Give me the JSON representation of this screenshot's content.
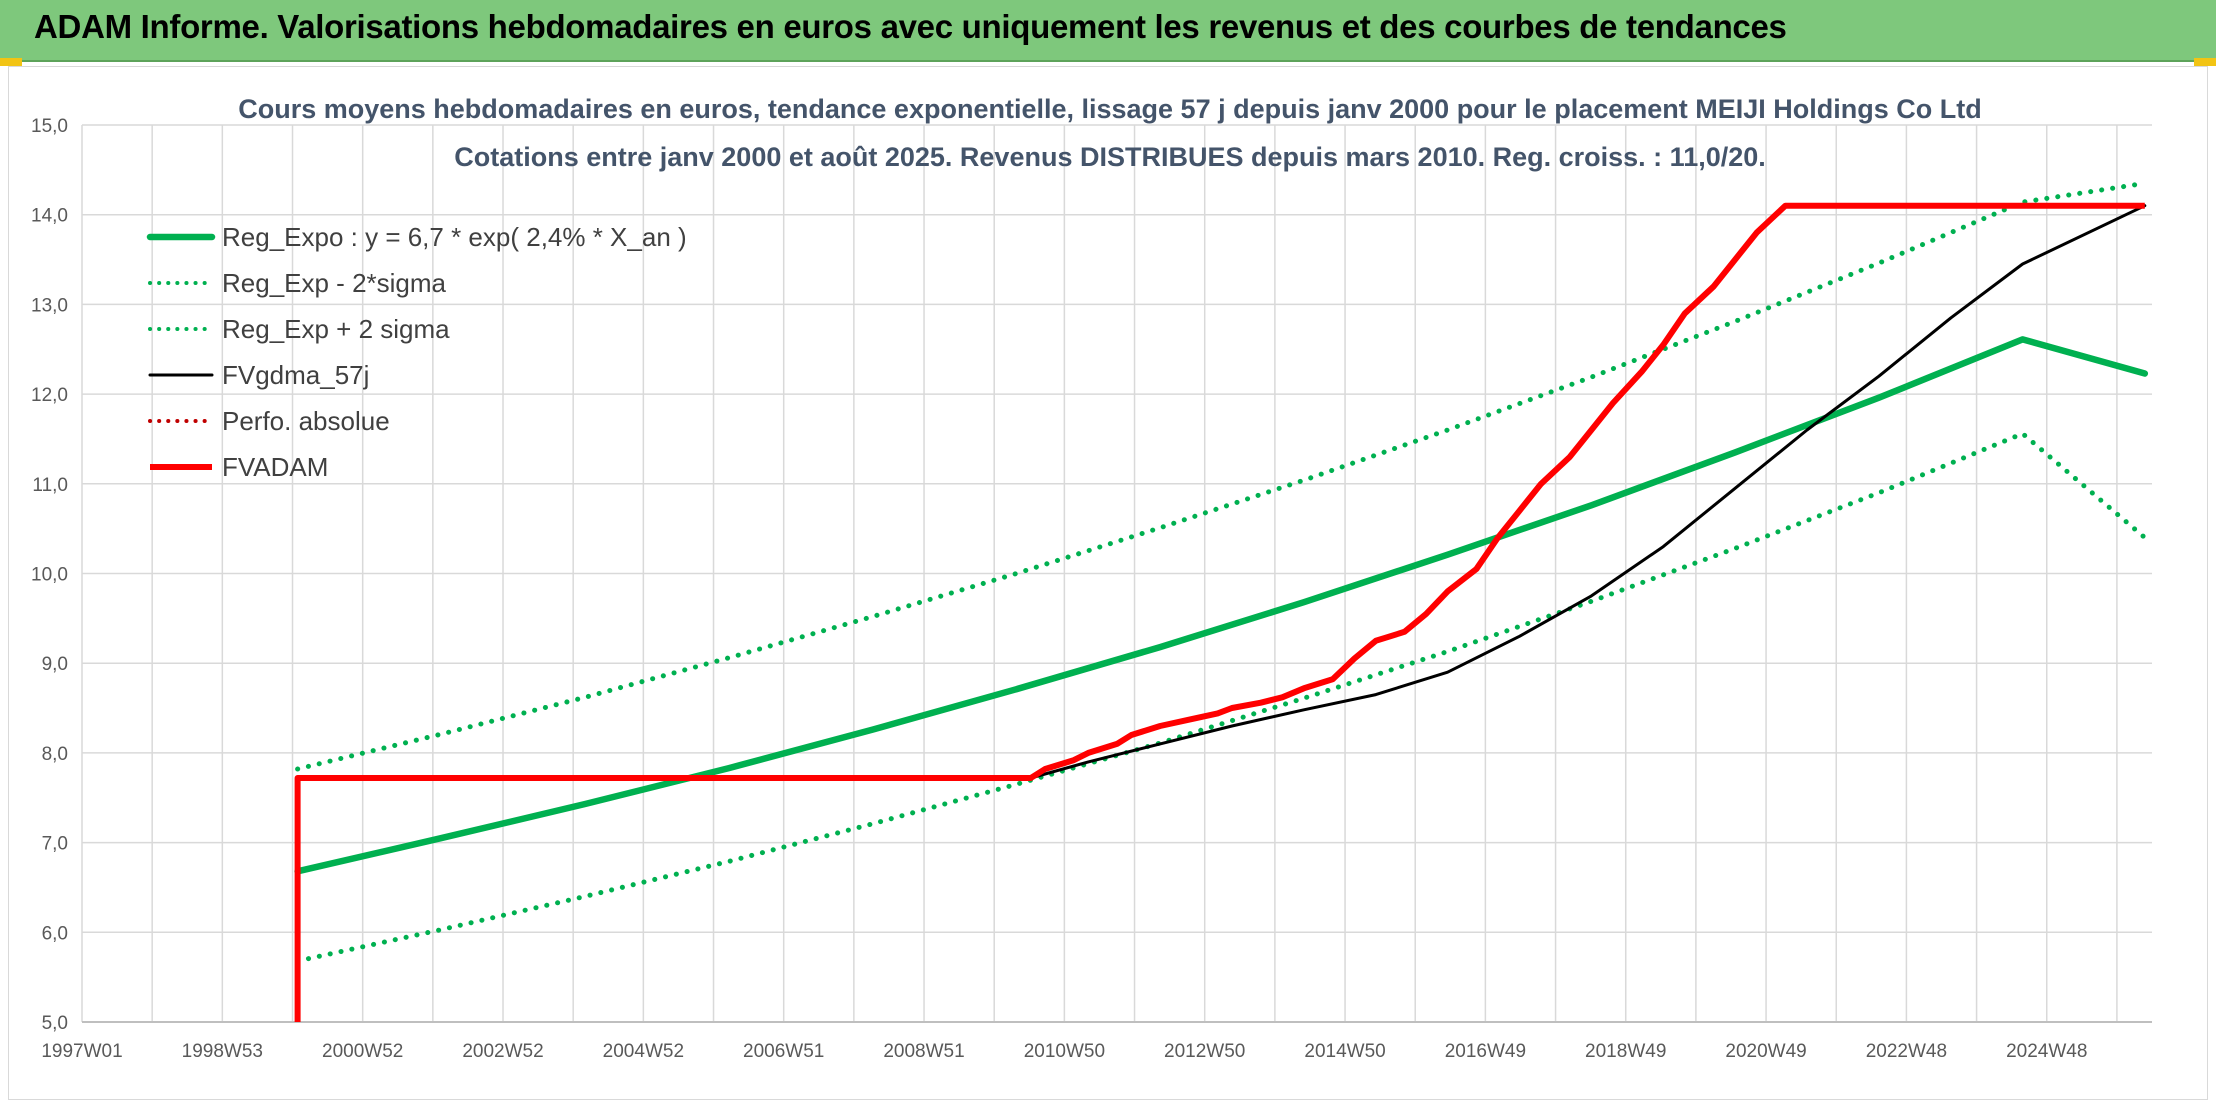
{
  "header": {
    "title": "ADAM Informe. Valorisations hebdomadaires en euros avec uniquement les revenus et des courbes de tendances"
  },
  "colors": {
    "banner": "#7ec87c",
    "reg_expo": "#00b050",
    "fvgdma": "#000000",
    "fvadam": "#ff0000",
    "grid": "#d9d9d9"
  },
  "chart_data": {
    "type": "line",
    "title": "Cours moyens hebdomadaires en euros, tendance exponentielle, lissage 57 j depuis janv 2000 pour le placement MEIJI Holdings Co Ltd",
    "subtitle": "Cotations entre janv 2000 et août 2025. Revenus DISTRIBUES depuis mars 2010. Reg. croiss. : 11,0/20.",
    "xlabel": "",
    "ylabel": "",
    "x_ticks": [
      "1997W01",
      "1998W53",
      "2000W52",
      "2002W52",
      "2004W52",
      "2006W51",
      "2008W51",
      "2010W50",
      "2012W50",
      "2014W50",
      "2016W49",
      "2018W49",
      "2020W49",
      "2022W48",
      "2024W48"
    ],
    "y_ticks": [
      "5,0",
      "6,0",
      "7,0",
      "8,0",
      "9,0",
      "10,0",
      "11,0",
      "12,0",
      "13,0",
      "14,0",
      "15,0"
    ],
    "xlim": [
      1997.0,
      2025.8
    ],
    "ylim": [
      5,
      15
    ],
    "grid": true,
    "legend_position": "top-left",
    "series": [
      {
        "name": "Reg_Expo : y = 6,7 * exp( 2,4% *  X_an )",
        "style": "solid",
        "color": "#00b050",
        "x": [
          2000.0,
          2002.0,
          2004.0,
          2006.0,
          2008.0,
          2010.0,
          2012.0,
          2014.0,
          2016.0,
          2018.0,
          2020.0,
          2022.0,
          2024.0,
          2025.7
        ],
        "y": [
          6.68,
          7.05,
          7.43,
          7.83,
          8.26,
          8.71,
          9.18,
          9.68,
          10.21,
          10.76,
          11.35,
          11.96,
          12.61,
          12.23
        ]
      },
      {
        "name": "Reg_Exp - 2*sigma",
        "style": "dotted",
        "color": "#00b050",
        "x": [
          2000.0,
          2002.0,
          2004.0,
          2006.0,
          2008.0,
          2010.0,
          2012.0,
          2014.0,
          2016.0,
          2018.0,
          2020.0,
          2022.0,
          2024.0,
          2025.7
        ],
        "y": [
          5.68,
          6.03,
          6.4,
          6.79,
          7.21,
          7.65,
          8.11,
          8.61,
          9.13,
          9.69,
          10.28,
          10.9,
          11.56,
          10.4
        ]
      },
      {
        "name": "Reg_Exp + 2 sigma",
        "style": "dotted",
        "color": "#00b050",
        "x": [
          2000.0,
          2002.0,
          2004.0,
          2006.0,
          2008.0,
          2010.0,
          2012.0,
          2014.0,
          2016.0,
          2018.0,
          2020.0,
          2022.0,
          2024.0,
          2025.7
        ],
        "y": [
          7.82,
          8.21,
          8.62,
          9.06,
          9.52,
          10.0,
          10.51,
          11.04,
          11.6,
          12.19,
          12.81,
          13.46,
          14.14,
          14.35
        ]
      },
      {
        "name": "FVgdma_57j",
        "style": "solid",
        "color": "#000000",
        "x": [
          2000.0,
          2010.2,
          2011.0,
          2012.0,
          2013.0,
          2014.0,
          2015.0,
          2016.0,
          2017.0,
          2018.0,
          2019.0,
          2020.0,
          2021.0,
          2022.0,
          2023.0,
          2024.0,
          2025.7
        ],
        "y": [
          7.72,
          7.72,
          7.9,
          8.1,
          8.3,
          8.48,
          8.65,
          8.9,
          9.3,
          9.75,
          10.3,
          10.95,
          11.6,
          12.2,
          12.85,
          13.45,
          14.1
        ]
      },
      {
        "name": "Perfo. absolue",
        "style": "dotted",
        "color": "#c00000",
        "x": [],
        "y": []
      },
      {
        "name": "FVADAM",
        "style": "solid",
        "color": "#ff0000",
        "x": [
          2000.0,
          2000.0,
          2010.2,
          2010.4,
          2010.8,
          2011.0,
          2011.4,
          2011.6,
          2012.0,
          2012.4,
          2012.8,
          2013.0,
          2013.4,
          2013.7,
          2014.0,
          2014.4,
          2014.7,
          2015.0,
          2015.4,
          2015.7,
          2016.0,
          2016.4,
          2016.7,
          2017.0,
          2017.3,
          2017.7,
          2018.0,
          2018.3,
          2018.7,
          2019.0,
          2019.3,
          2019.7,
          2020.0,
          2020.3,
          2020.7,
          2021.0,
          2021.3,
          2021.7,
          2022.0,
          2022.3,
          2022.7,
          2023.0,
          2023.3,
          2023.7,
          2024.0,
          2024.3,
          2024.7,
          2025.0,
          2025.7
        ],
        "y": [
          5.0,
          7.72,
          7.72,
          7.82,
          7.92,
          8.0,
          8.1,
          8.2,
          8.3,
          8.37,
          8.44,
          8.5,
          8.56,
          8.62,
          8.72,
          8.82,
          9.05,
          9.25,
          9.35,
          9.55,
          9.8,
          10.05,
          10.4,
          10.7,
          11.0,
          11.3,
          11.6,
          11.9,
          12.25,
          12.55,
          12.9,
          13.2,
          13.5,
          13.8,
          14.1,
          14.1,
          14.1,
          14.1,
          14.1,
          14.1,
          14.1,
          14.1,
          14.1,
          14.1,
          14.1,
          14.1,
          14.1,
          14.1,
          14.1
        ]
      }
    ]
  }
}
